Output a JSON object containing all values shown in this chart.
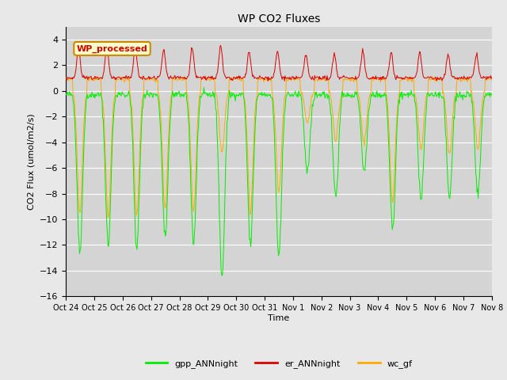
{
  "title": "WP CO2 Fluxes",
  "ylabel": "CO2 Flux (umol/m2/s)",
  "xlabel": "Time",
  "ylim": [
    -16,
    5
  ],
  "yticks": [
    -16,
    -14,
    -12,
    -10,
    -8,
    -6,
    -4,
    -2,
    0,
    2,
    4
  ],
  "background_color": "#e8e8e8",
  "plot_bg_color": "#d4d4d4",
  "grid_color": "#ffffff",
  "watermark_text": "WP_processed",
  "watermark_bg": "#ffffcc",
  "watermark_edge": "#cc8800",
  "watermark_text_color": "#cc0000",
  "line_colors": {
    "gpp": "#00ee00",
    "er": "#dd0000",
    "wc": "#ffaa00"
  },
  "legend_labels": [
    "gpp_ANNnight",
    "er_ANNnight",
    "wc_gf"
  ],
  "n_days": 15,
  "points_per_day": 48,
  "x_tick_labels": [
    "Oct 24",
    "Oct 25",
    "Oct 26",
    "Oct 27",
    "Oct 28",
    "Oct 29",
    "Oct 30",
    "Oct 31",
    "Nov 1",
    "Nov 2",
    "Nov 3",
    "Nov 4",
    "Nov 5",
    "Nov 6",
    "Nov 7",
    "Nov 8"
  ]
}
